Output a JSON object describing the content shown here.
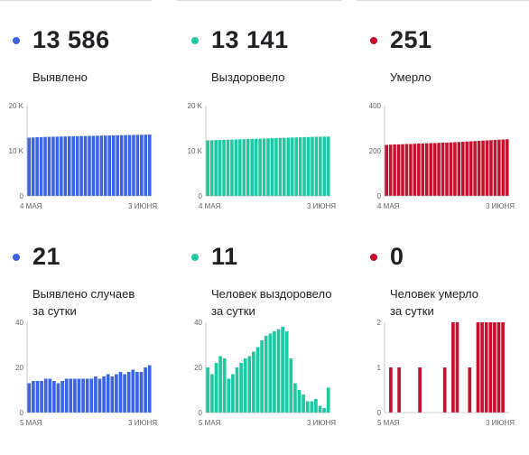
{
  "colors": {
    "blue": "#3b63e6",
    "teal": "#1cc9a0",
    "red": "#c8102e"
  },
  "panels": [
    {
      "value": "13 586",
      "label": "Выявлено",
      "label2": "",
      "color": "#3b63e6",
      "chart_data": {
        "type": "bar",
        "xlabels": [
          "4 МАЯ",
          "3 ИЮНЯ"
        ],
        "yticks": [
          "0",
          "10 K",
          "20 K"
        ],
        "ylim": [
          0,
          20000
        ],
        "values": [
          12900,
          12950,
          13000,
          13030,
          13060,
          13090,
          13110,
          13130,
          13150,
          13170,
          13190,
          13210,
          13230,
          13250,
          13270,
          13290,
          13310,
          13330,
          13350,
          13370,
          13390,
          13410,
          13430,
          13450,
          13470,
          13490,
          13510,
          13530,
          13550,
          13560,
          13586
        ]
      }
    },
    {
      "value": "13 141",
      "label": "Выздоровело",
      "label2": "",
      "color": "#1cc9a0",
      "chart_data": {
        "type": "bar",
        "xlabels": [
          "4 МАЯ",
          "3 ИЮНЯ"
        ],
        "yticks": [
          "0",
          "10 K",
          "20 K"
        ],
        "ylim": [
          0,
          20000
        ],
        "values": [
          12300,
          12330,
          12360,
          12390,
          12420,
          12450,
          12480,
          12510,
          12540,
          12570,
          12600,
          12630,
          12660,
          12690,
          12720,
          12750,
          12780,
          12810,
          12840,
          12870,
          12900,
          12930,
          12960,
          12990,
          13020,
          13050,
          13080,
          13100,
          13120,
          13130,
          13141
        ]
      }
    },
    {
      "value": "251",
      "label": "Умерло",
      "label2": "",
      "color": "#c8102e",
      "chart_data": {
        "type": "bar",
        "xlabels": [
          "4 МАЯ",
          "3 ИЮНЯ"
        ],
        "yticks": [
          "0",
          "200",
          "400"
        ],
        "ylim": [
          0,
          400
        ],
        "values": [
          226,
          227,
          228,
          228,
          229,
          230,
          230,
          231,
          232,
          232,
          233,
          234,
          234,
          235,
          236,
          236,
          237,
          238,
          239,
          240,
          241,
          242,
          243,
          244,
          245,
          246,
          247,
          248,
          249,
          250,
          251
        ]
      }
    },
    {
      "value": "21",
      "label": "Выявлено случаев",
      "label2": "за сутки",
      "color": "#3b63e6",
      "chart_data": {
        "type": "bar",
        "xlabels": [
          "5 МАЯ",
          "3 ИЮНЯ"
        ],
        "yticks": [
          "0",
          "20",
          "40"
        ],
        "ylim": [
          0,
          40
        ],
        "values": [
          13,
          14,
          14,
          14,
          15,
          15,
          14,
          13,
          14,
          15,
          15,
          15,
          15,
          15,
          15,
          15,
          16,
          15,
          16,
          17,
          16,
          17,
          18,
          17,
          18,
          19,
          18,
          18,
          20,
          21
        ]
      }
    },
    {
      "value": "11",
      "label": "Человек выздоровело",
      "label2": "за сутки",
      "color": "#1cc9a0",
      "chart_data": {
        "type": "bar",
        "xlabels": [
          "5 МАЯ",
          "3 ИЮНЯ"
        ],
        "yticks": [
          "0",
          "20",
          "40"
        ],
        "ylim": [
          0,
          40
        ],
        "values": [
          20,
          17,
          22,
          25,
          24,
          15,
          17,
          20,
          22,
          24,
          25,
          27,
          29,
          32,
          34,
          35,
          36,
          37,
          38,
          36,
          24,
          13,
          10,
          8,
          5,
          5,
          6,
          3,
          2,
          11
        ]
      }
    },
    {
      "value": "0",
      "label": "Человек умерло",
      "label2": "за сутки",
      "color": "#c8102e",
      "chart_data": {
        "type": "bar",
        "xlabels": [
          "5 МАЯ",
          "3 ИЮНЯ"
        ],
        "yticks": [
          "0",
          "1",
          "2"
        ],
        "ylim": [
          0,
          2
        ],
        "values": [
          0,
          1,
          0,
          1,
          0,
          0,
          0,
          0,
          1,
          0,
          0,
          0,
          0,
          0,
          1,
          0,
          2,
          2,
          0,
          0,
          1,
          0,
          2,
          2,
          2,
          2,
          2,
          2,
          2,
          0
        ]
      }
    }
  ]
}
